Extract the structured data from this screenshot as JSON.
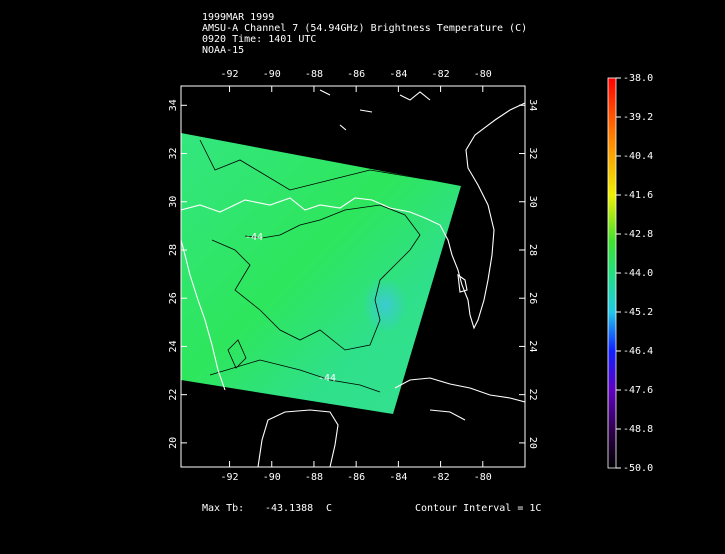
{
  "header": {
    "lines": [
      "1999MAR 1999",
      "AMSU-A Channel 7 (54.94GHz) Brightness Temperature (C)",
      "0920 Time: 1401 UTC",
      "NOAA-15"
    ]
  },
  "map": {
    "lon_range": [
      -94.3,
      -78
    ],
    "lat_range": [
      19,
      34.8
    ],
    "lon_ticks": [
      -92,
      -90,
      -88,
      -86,
      -84,
      -82,
      -80
    ],
    "lat_ticks": [
      20,
      22,
      24,
      26,
      28,
      30,
      32,
      34
    ],
    "contour_labels": [
      "-44",
      "-44"
    ]
  },
  "colorbar": {
    "range": [
      -50,
      -38
    ],
    "ticks": [
      {
        "value": -38,
        "label": "-38.0"
      },
      {
        "value": -39.2,
        "label": "-39.2"
      },
      {
        "value": -40.4,
        "label": "-40.4"
      },
      {
        "value": -41.6,
        "label": "-41.6"
      },
      {
        "value": -42.8,
        "label": "-42.8"
      },
      {
        "value": -44,
        "label": "-44.0"
      },
      {
        "value": -45.2,
        "label": "-45.2"
      },
      {
        "value": -46.4,
        "label": "-46.4"
      },
      {
        "value": -47.6,
        "label": "-47.6"
      },
      {
        "value": -48.8,
        "label": "-48.8"
      },
      {
        "value": -50,
        "label": "-50.0"
      }
    ]
  },
  "footer": {
    "max_label": "Max Tb:",
    "max_value": -43.1388,
    "max_unit": "C",
    "contour": "Contour Interval = 1C"
  }
}
